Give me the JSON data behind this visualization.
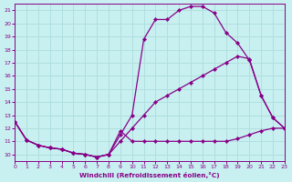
{
  "xlabel": "Windchill (Refroidissement éolien,°C)",
  "background_color": "#c8f0f0",
  "grid_color": "#b0dede",
  "line_color": "#880088",
  "xlim": [
    0,
    23
  ],
  "ylim": [
    9.5,
    21.5
  ],
  "xticks": [
    0,
    1,
    2,
    3,
    4,
    5,
    6,
    7,
    8,
    9,
    10,
    11,
    12,
    13,
    14,
    15,
    16,
    17,
    18,
    19,
    20,
    21,
    22,
    23
  ],
  "yticks": [
    10,
    11,
    12,
    13,
    14,
    15,
    16,
    17,
    18,
    19,
    20,
    21
  ],
  "curve_bell_x": [
    0,
    1,
    2,
    3,
    4,
    5,
    6,
    7,
    8,
    9,
    10,
    11,
    12,
    13,
    14,
    15,
    16,
    17,
    18,
    19,
    20,
    21,
    22,
    23
  ],
  "curve_bell_y": [
    12.5,
    11.1,
    10.7,
    10.5,
    10.4,
    10.1,
    10.0,
    9.8,
    10.0,
    11.5,
    13.0,
    18.8,
    20.3,
    20.3,
    21.0,
    21.3,
    21.3,
    20.8,
    19.3,
    18.5,
    17.2,
    14.5,
    12.8,
    12.0
  ],
  "curve_diag_x": [
    0,
    1,
    2,
    3,
    4,
    5,
    6,
    7,
    8,
    9,
    10,
    11,
    12,
    13,
    14,
    15,
    16,
    17,
    18,
    19,
    20,
    21,
    22,
    23
  ],
  "curve_diag_y": [
    12.5,
    11.1,
    10.7,
    10.5,
    10.4,
    10.1,
    10.0,
    9.8,
    10.0,
    11.0,
    12.0,
    13.0,
    14.0,
    14.5,
    15.0,
    15.5,
    16.0,
    16.5,
    17.0,
    17.5,
    17.3,
    14.5,
    12.8,
    12.0
  ],
  "curve_flat_x": [
    0,
    1,
    2,
    3,
    4,
    5,
    6,
    7,
    8,
    9,
    10,
    11,
    12,
    13,
    14,
    15,
    16,
    17,
    18,
    19,
    20,
    21,
    22,
    23
  ],
  "curve_flat_y": [
    12.5,
    11.1,
    10.7,
    10.5,
    10.4,
    10.1,
    10.0,
    9.8,
    10.0,
    11.8,
    11.0,
    11.0,
    11.0,
    11.0,
    11.0,
    11.0,
    11.0,
    11.0,
    11.0,
    11.2,
    11.5,
    11.8,
    12.0,
    12.0
  ]
}
